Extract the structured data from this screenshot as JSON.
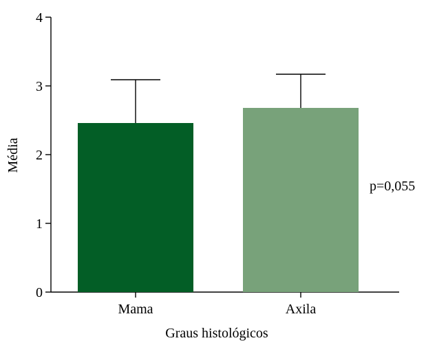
{
  "chart_data": {
    "type": "bar",
    "title": "",
    "xlabel": "Graus histológicos",
    "ylabel": "Média",
    "categories": [
      "Mama",
      "Axila"
    ],
    "values": [
      2.46,
      2.68
    ],
    "error_upper": [
      3.09,
      3.17
    ],
    "ylim": [
      0,
      4
    ],
    "yticks": [
      "0",
      "1",
      "2",
      "3",
      "4"
    ],
    "colors": [
      "#035E26",
      "#78A27A"
    ],
    "annotation": "p=0,055",
    "grid": false,
    "legend": "none"
  }
}
